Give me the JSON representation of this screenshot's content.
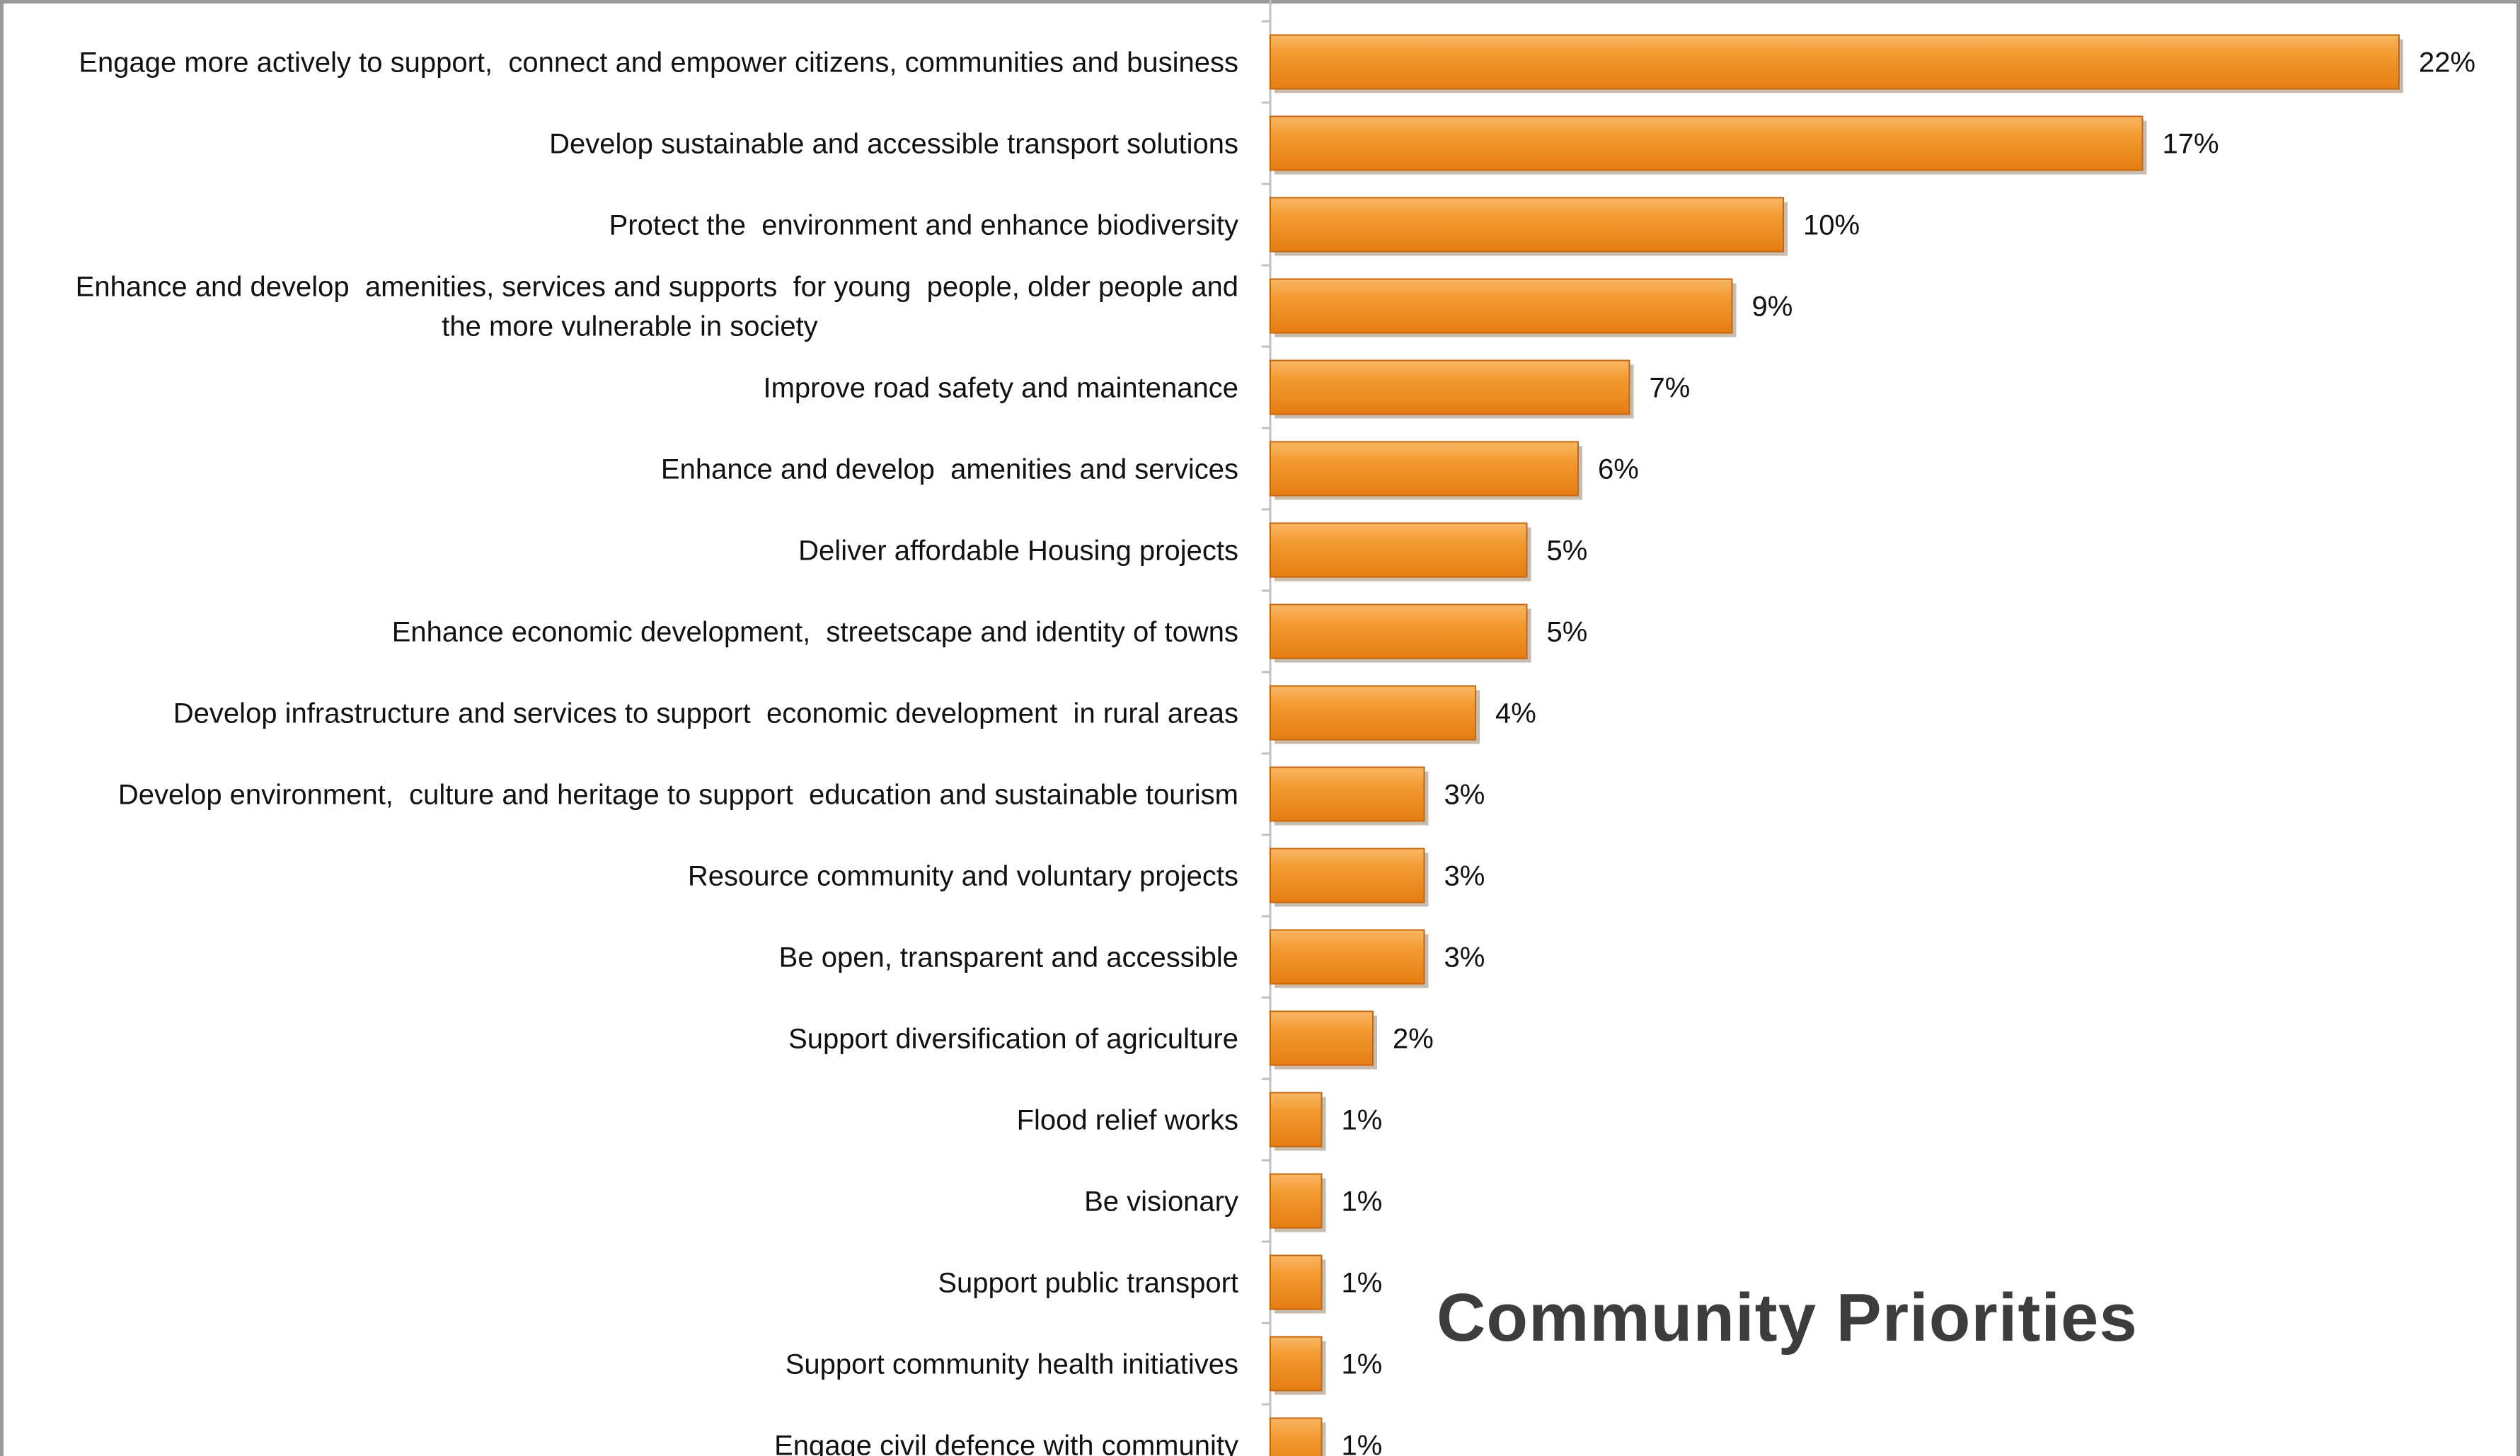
{
  "chart_data": {
    "type": "bar",
    "orientation": "horizontal",
    "title": "Community Priorities",
    "bar_color": "#F08A1C",
    "value_suffix": "%",
    "xlim": [
      0,
      22
    ],
    "grid": false,
    "legend": "none",
    "categories": [
      [
        "Engage more actively to support,  connect and empower citizens, communities and business"
      ],
      [
        "Develop sustainable and accessible transport solutions"
      ],
      [
        "Protect the  environment and enhance biodiversity"
      ],
      [
        "Enhance and develop  amenities, services and supports  for young  people, older people and",
        "the more vulnerable in society"
      ],
      [
        "Improve road safety and maintenance"
      ],
      [
        "Enhance and develop  amenities and services"
      ],
      [
        "Deliver affordable Housing projects"
      ],
      [
        "Enhance economic development,  streetscape and identity of towns"
      ],
      [
        "Develop infrastructure and services to support  economic development  in rural areas"
      ],
      [
        "Develop environment,  culture and heritage to support  education and sustainable tourism"
      ],
      [
        "Resource community and voluntary projects"
      ],
      [
        "Be open, transparent and accessible"
      ],
      [
        "Support diversification of agriculture"
      ],
      [
        "Flood relief works"
      ],
      [
        "Be visionary"
      ],
      [
        "Support public transport"
      ],
      [
        "Support community health initiatives"
      ],
      [
        "Engage civil defence with community"
      ]
    ],
    "values": [
      22,
      17,
      10,
      9,
      7,
      6,
      5,
      5,
      4,
      3,
      3,
      3,
      2,
      1,
      1,
      1,
      1,
      1
    ],
    "value_labels": [
      "22%",
      "17%",
      "10%",
      "9%",
      "7%",
      "6%",
      "5%",
      "5%",
      "4%",
      "3%",
      "3%",
      "3%",
      "2%",
      "1%",
      "1%",
      "1%",
      "1%",
      "1%"
    ]
  }
}
